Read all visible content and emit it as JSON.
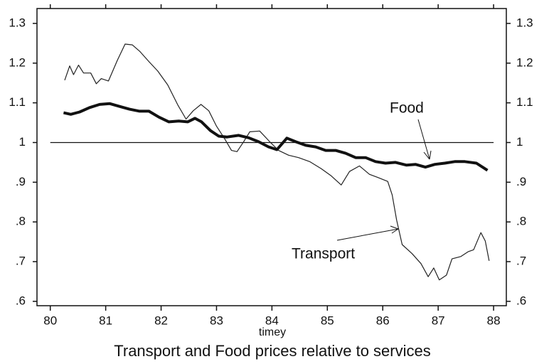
{
  "chart_data": {
    "type": "line",
    "title": "Transport and Food prices relative to services",
    "x_label": "timey",
    "xlim": [
      79.76,
      88.23
    ],
    "xticks": [
      80,
      81,
      82,
      83,
      84,
      85,
      86,
      87,
      88
    ],
    "ylim": [
      0.589,
      1.3375
    ],
    "yticks": [
      {
        "value": 0.6,
        "label": ".6"
      },
      {
        "value": 0.7,
        "label": ".7"
      },
      {
        "value": 0.8,
        "label": ".8"
      },
      {
        "value": 0.9,
        "label": ".9"
      },
      1,
      1.1,
      1.2,
      1.3
    ],
    "reference_line": 1,
    "series": [
      {
        "name": "Transport",
        "color": "#222222",
        "line_width": 1.2,
        "x": [
          80.26,
          80.35,
          80.42,
          80.51,
          80.6,
          80.73,
          80.83,
          80.92,
          81.05,
          81.21,
          81.35,
          81.48,
          81.62,
          81.78,
          81.94,
          82.12,
          82.3,
          82.45,
          82.58,
          82.72,
          82.86,
          83.0,
          83.14,
          83.27,
          83.37,
          83.49,
          83.6,
          83.78,
          83.96,
          84.12,
          84.3,
          84.48,
          84.68,
          84.89,
          85.07,
          85.25,
          85.4,
          85.58,
          85.76,
          85.91,
          86.09,
          86.17,
          86.25,
          86.35,
          86.53,
          86.69,
          86.82,
          86.92,
          87.02,
          87.15,
          87.25,
          87.41,
          87.54,
          87.64,
          87.77,
          87.85,
          87.92
        ],
        "values": [
          1.157,
          1.193,
          1.171,
          1.195,
          1.175,
          1.175,
          1.148,
          1.161,
          1.155,
          1.207,
          1.248,
          1.246,
          1.229,
          1.204,
          1.18,
          1.145,
          1.095,
          1.059,
          1.08,
          1.096,
          1.08,
          1.041,
          1.011,
          0.98,
          0.977,
          1.002,
          1.027,
          1.029,
          1.002,
          0.98,
          0.968,
          0.962,
          0.952,
          0.934,
          0.916,
          0.893,
          0.927,
          0.941,
          0.92,
          0.912,
          0.902,
          0.868,
          0.805,
          0.743,
          0.72,
          0.695,
          0.662,
          0.684,
          0.654,
          0.666,
          0.707,
          0.713,
          0.725,
          0.73,
          0.773,
          0.752,
          0.702
        ]
      },
      {
        "name": "Food",
        "color": "#111111",
        "line_width": 4,
        "x": [
          80.24,
          80.37,
          80.53,
          80.71,
          80.89,
          81.07,
          81.25,
          81.43,
          81.61,
          81.78,
          81.96,
          82.14,
          82.32,
          82.48,
          82.61,
          82.73,
          82.89,
          83.04,
          83.19,
          83.4,
          83.58,
          83.76,
          83.94,
          84.09,
          84.27,
          84.43,
          84.61,
          84.79,
          84.97,
          85.15,
          85.33,
          85.51,
          85.69,
          85.87,
          86.05,
          86.23,
          86.43,
          86.59,
          86.77,
          86.94,
          87.12,
          87.3,
          87.48,
          87.69,
          87.89
        ],
        "values": [
          1.075,
          1.071,
          1.077,
          1.088,
          1.096,
          1.098,
          1.091,
          1.084,
          1.079,
          1.079,
          1.064,
          1.052,
          1.054,
          1.052,
          1.061,
          1.052,
          1.03,
          1.016,
          1.014,
          1.018,
          1.012,
          1.002,
          0.989,
          0.982,
          1.011,
          1.002,
          0.993,
          0.989,
          0.98,
          0.98,
          0.973,
          0.962,
          0.962,
          0.952,
          0.948,
          0.95,
          0.943,
          0.945,
          0.938,
          0.945,
          0.948,
          0.952,
          0.952,
          0.948,
          0.93
        ]
      }
    ],
    "annotations": [
      "Food",
      "Transport"
    ]
  }
}
